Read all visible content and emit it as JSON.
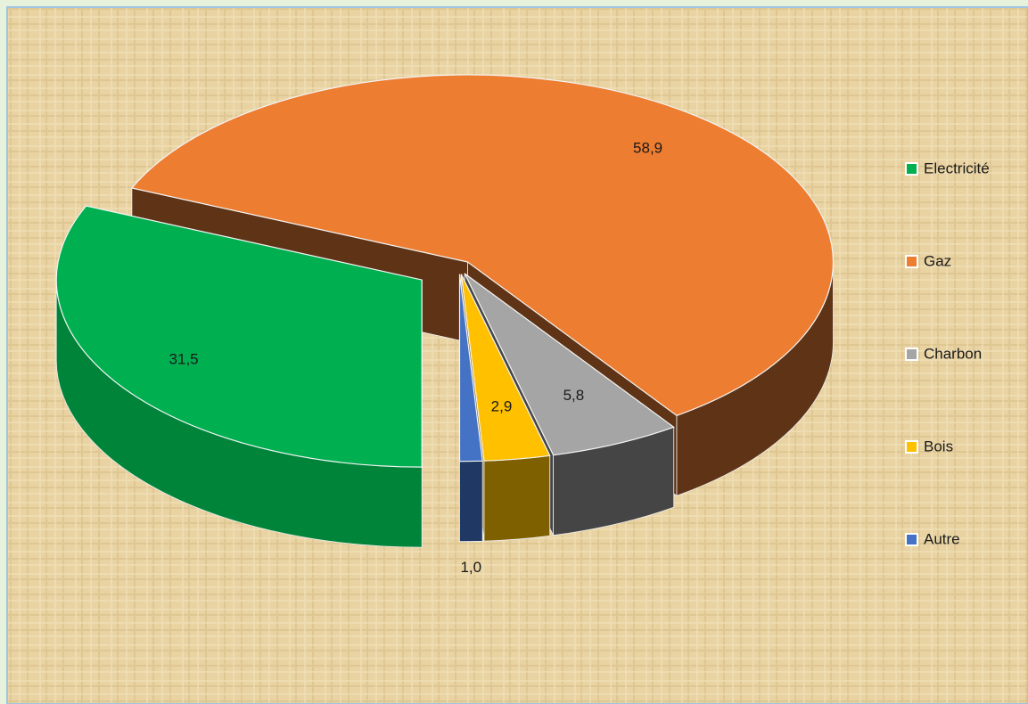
{
  "chart_data": {
    "type": "pie3d",
    "categories": [
      "Electricité",
      "Gaz",
      "Charbon",
      "Bois",
      "Autre"
    ],
    "values": [
      31.5,
      58.9,
      5.8,
      2.9,
      1.0
    ],
    "value_labels": [
      "31,5",
      "58,9",
      "5,8",
      "2,9",
      "1,0"
    ],
    "colors": [
      "#00b050",
      "#ed7d31",
      "#a5a5a5",
      "#ffc000",
      "#4472c4"
    ],
    "side_colors": [
      "#00843a",
      "#5e3316",
      "#454545",
      "#7f6000",
      "#203864"
    ],
    "legend": "right"
  }
}
